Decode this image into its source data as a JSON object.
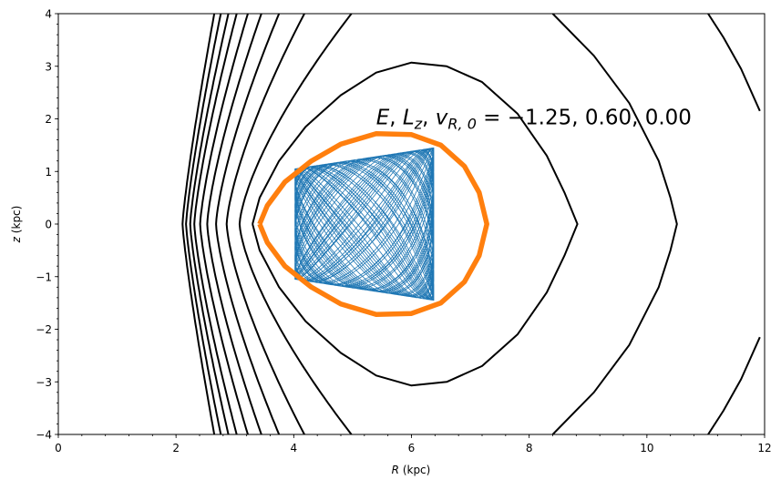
{
  "chart_data": {
    "type": "line",
    "title": "",
    "xlabel": {
      "var": "R",
      "unit": "(kpc)"
    },
    "ylabel": {
      "var": "z",
      "unit": "(kpc)"
    },
    "xlim": [
      0,
      12
    ],
    "ylim": [
      -4,
      4
    ],
    "xticks": [
      "0",
      "2",
      "4",
      "6",
      "8",
      "10",
      "12"
    ],
    "xtick_values": [
      0,
      2,
      4,
      6,
      8,
      10,
      12
    ],
    "yticks": [
      "−4",
      "−3",
      "−2",
      "−1",
      "0",
      "1",
      "2",
      "3",
      "4"
    ],
    "ytick_values": [
      -4,
      -3,
      -2,
      -1,
      0,
      1,
      2,
      3,
      4
    ],
    "x_minor_step": 0.4,
    "y_minor_step": 0.2,
    "grid": false,
    "annotation": {
      "E": "E",
      "sep1": ", ",
      "L": "L",
      "sub_z": "z",
      "sep2": ", ",
      "v": "v",
      "sub_R0": "R, 0",
      "rhs": " = −1.25, 0.60, 0.00",
      "values": [
        -1.25,
        0.6,
        0.0
      ],
      "position_data": [
        5.4,
        1.9
      ]
    },
    "colors": {
      "contour": "#000000",
      "zero_velocity": "#ff7f0e",
      "orbit": "#1f77b4"
    },
    "open_contours": [
      {
        "R_at_z0": 2.11,
        "R_at_z4": 2.65
      },
      {
        "R_at_z0": 2.17,
        "R_at_z4": 2.76
      },
      {
        "R_at_z0": 2.24,
        "R_at_z4": 2.89
      },
      {
        "R_at_z0": 2.31,
        "R_at_z4": 3.03
      },
      {
        "R_at_z0": 2.41,
        "R_at_z4": 3.22
      },
      {
        "R_at_z0": 2.53,
        "R_at_z4": 3.45
      },
      {
        "R_at_z0": 2.68,
        "R_at_z4": 3.75
      },
      {
        "R_at_z0": 2.86,
        "R_at_z4": 4.18
      },
      {
        "R_at_z0": 3.08,
        "R_at_z4": 4.98
      }
    ],
    "closed_contour_top_half": [
      [
        3.3,
        0
      ],
      [
        3.42,
        0.5
      ],
      [
        3.75,
        1.2
      ],
      [
        4.2,
        1.85
      ],
      [
        4.8,
        2.45
      ],
      [
        5.4,
        2.88
      ],
      [
        6.0,
        3.07
      ],
      [
        6.6,
        3.0
      ],
      [
        7.2,
        2.7
      ],
      [
        7.8,
        2.1
      ],
      [
        8.3,
        1.3
      ],
      [
        8.6,
        0.6
      ],
      [
        8.82,
        0
      ]
    ],
    "outer_contour_right_top_half": [
      [
        8.4,
        4
      ],
      [
        9.1,
        3.2
      ],
      [
        9.7,
        2.3
      ],
      [
        10.2,
        1.2
      ],
      [
        10.4,
        0.5
      ],
      [
        10.51,
        0
      ]
    ],
    "far_contour_top_half": [
      [
        11.04,
        4
      ],
      [
        11.3,
        3.55
      ],
      [
        11.6,
        2.95
      ],
      [
        11.92,
        2.15
      ]
    ],
    "zero_velocity_curve_top_half": [
      [
        3.42,
        0
      ],
      [
        3.55,
        0.35
      ],
      [
        3.85,
        0.8
      ],
      [
        4.3,
        1.2
      ],
      [
        4.8,
        1.52
      ],
      [
        5.4,
        1.72
      ],
      [
        6.0,
        1.7
      ],
      [
        6.5,
        1.5
      ],
      [
        6.9,
        1.1
      ],
      [
        7.15,
        0.6
      ],
      [
        7.28,
        0
      ]
    ],
    "orbit": {
      "R_center": 5.2,
      "R_amplitude": 1.18,
      "z_amp_at_Rmin": 1.05,
      "z_amp_at_Rmax": 1.45,
      "freq_ratio": 1.37
    }
  }
}
